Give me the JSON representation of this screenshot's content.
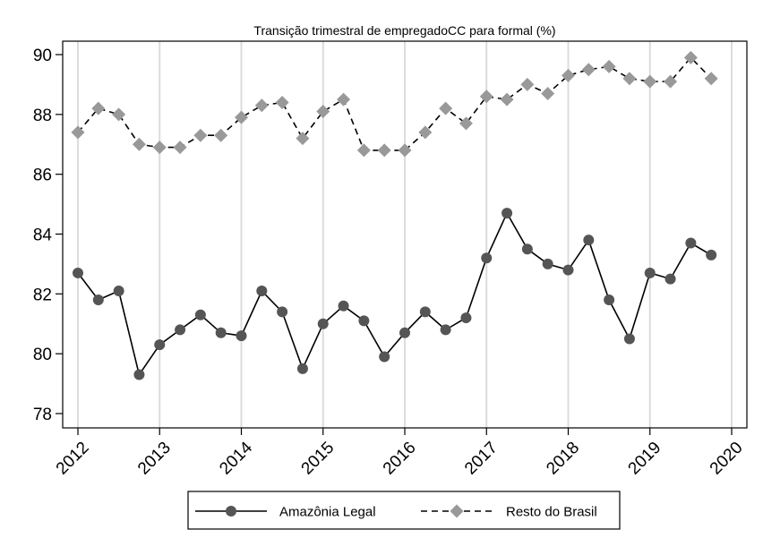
{
  "chart_data": {
    "type": "line",
    "title": "Transição trimestral de empregadoCC para formal (%)",
    "xlabel": "",
    "ylabel": "",
    "xlim": [
      2012,
      2020
    ],
    "ylim": [
      78,
      90
    ],
    "x_ticks": [
      "2012",
      "2013",
      "2014",
      "2015",
      "2016",
      "2017",
      "2018",
      "2019",
      "2020"
    ],
    "y_ticks": [
      "78",
      "80",
      "82",
      "84",
      "86",
      "88",
      "90"
    ],
    "grid": "vertical",
    "legend_position": "bottom",
    "x": [
      2012.0,
      2012.25,
      2012.5,
      2012.75,
      2013.0,
      2013.25,
      2013.5,
      2013.75,
      2014.0,
      2014.25,
      2014.5,
      2014.75,
      2015.0,
      2015.25,
      2015.5,
      2015.75,
      2016.0,
      2016.25,
      2016.5,
      2016.75,
      2017.0,
      2017.25,
      2017.5,
      2017.75,
      2018.0,
      2018.25,
      2018.5,
      2018.75,
      2019.0,
      2019.25,
      2019.5,
      2019.75
    ],
    "series": [
      {
        "name": "Amazônia Legal",
        "color": "#555555",
        "line": "solid",
        "marker": "circle",
        "values": [
          82.7,
          81.8,
          82.1,
          79.3,
          80.3,
          80.8,
          81.3,
          80.7,
          80.6,
          82.1,
          81.4,
          79.5,
          81.0,
          81.6,
          81.1,
          79.9,
          80.7,
          81.4,
          80.8,
          81.2,
          83.2,
          84.7,
          83.5,
          83.0,
          82.8,
          83.8,
          81.8,
          80.5,
          82.7,
          82.5,
          83.7,
          83.3
        ]
      },
      {
        "name": "Resto do Brasil",
        "color": "#999999",
        "line": "dashed",
        "marker": "diamond",
        "values": [
          87.4,
          88.2,
          88.0,
          87.0,
          86.9,
          86.9,
          87.3,
          87.3,
          87.9,
          88.3,
          88.4,
          87.2,
          88.1,
          88.5,
          86.8,
          86.8,
          86.8,
          87.4,
          88.2,
          87.7,
          88.6,
          88.5,
          89.0,
          88.7,
          89.3,
          89.5,
          89.6,
          89.2,
          89.1,
          89.1,
          89.9,
          89.2
        ]
      }
    ]
  }
}
